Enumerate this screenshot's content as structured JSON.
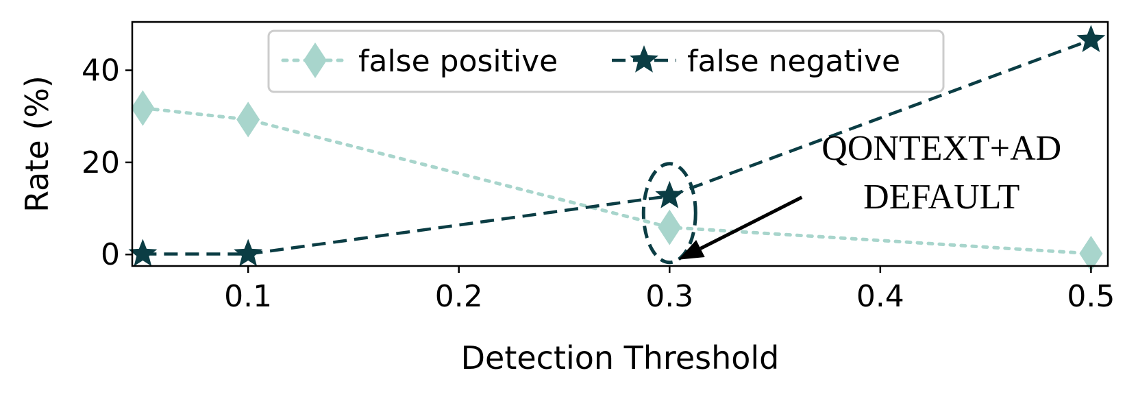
{
  "chart_data": {
    "type": "line",
    "xlabel": "Detection Threshold",
    "ylabel": "Rate (%)",
    "xlim": [
      0.045,
      0.508
    ],
    "ylim": [
      -2.5,
      50.5
    ],
    "xticks": [
      "0.1",
      "0.2",
      "0.3",
      "0.4",
      "0.5"
    ],
    "xtick_values": [
      0.1,
      0.2,
      0.3,
      0.4,
      0.5
    ],
    "yticks": [
      "0",
      "20",
      "40"
    ],
    "ytick_values": [
      0,
      20,
      40
    ],
    "grid": false,
    "legend": "top-center",
    "series": [
      {
        "name": "false positive",
        "marker": "diamond",
        "linestyle": "dotted",
        "color": "#a8d5cc",
        "x": [
          0.05,
          0.1,
          0.3,
          0.5
        ],
        "y": [
          31.8,
          29.3,
          5.9,
          0.2
        ]
      },
      {
        "name": "false negative",
        "marker": "star",
        "linestyle": "dashed",
        "color": "#0b3d44",
        "x": [
          0.05,
          0.1,
          0.3,
          0.5
        ],
        "y": [
          0.1,
          0.1,
          12.7,
          46.6
        ]
      }
    ],
    "annotation": {
      "lines": [
        "QONTEXT+AD",
        "DEFAULT"
      ],
      "x": 0.3,
      "y": 9.0
    }
  }
}
